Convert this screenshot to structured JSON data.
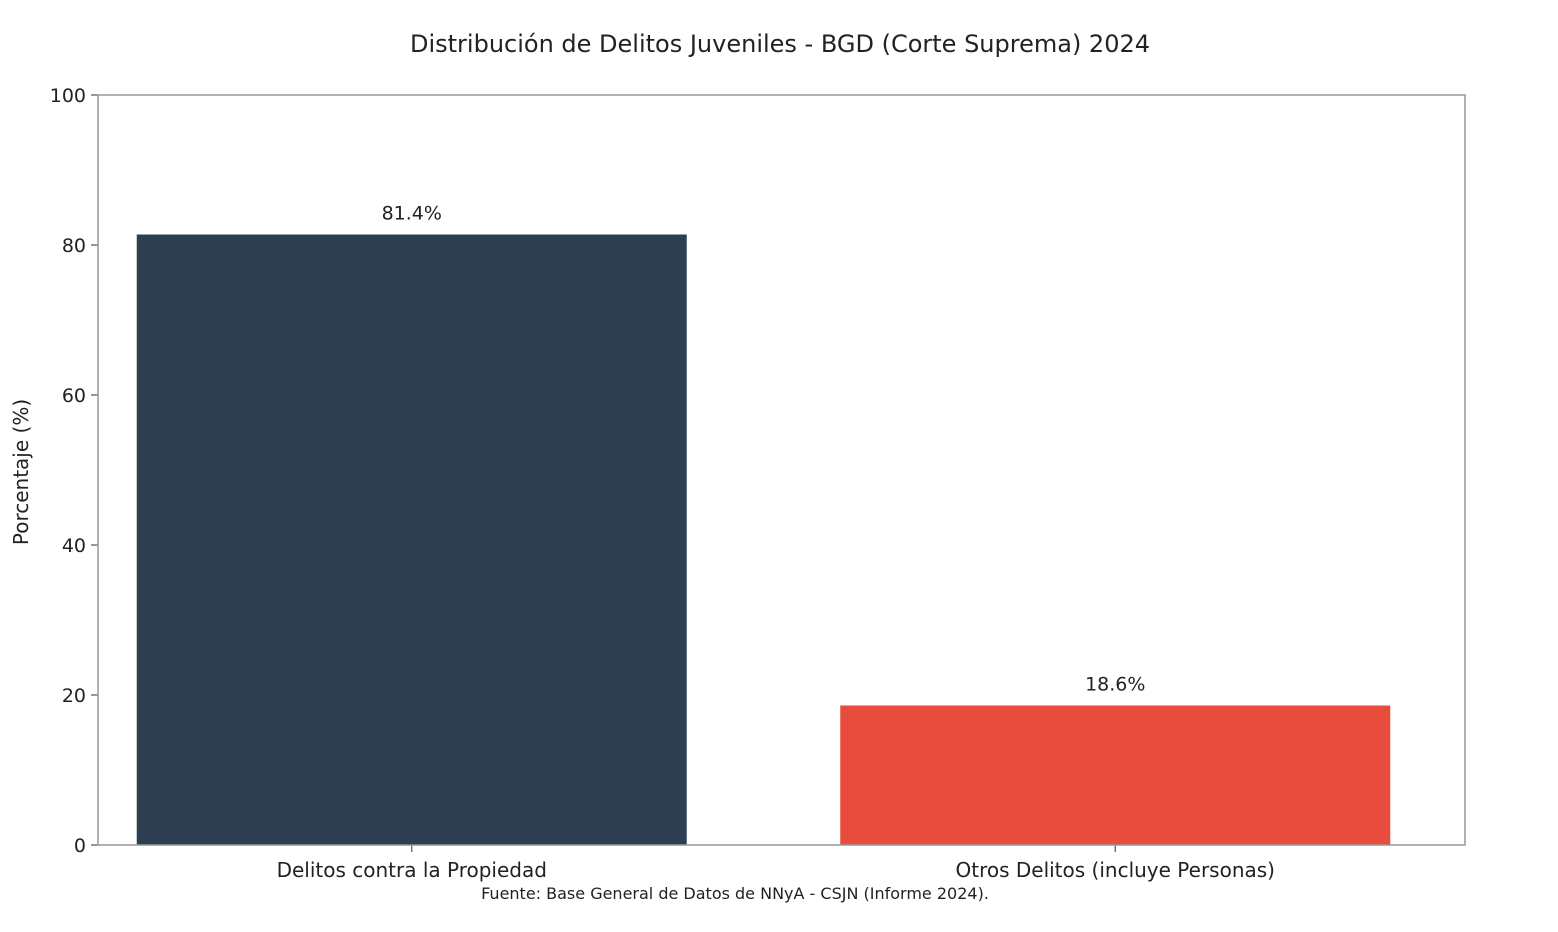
{
  "chart_data": {
    "type": "bar",
    "title": "Distribución de Delitos Juveniles - BGD (Corte Suprema) 2024",
    "xlabel": "",
    "ylabel": "Porcentaje (%)",
    "ylim": [
      0,
      100
    ],
    "yticks": [
      0,
      20,
      40,
      60,
      80,
      100
    ],
    "categories": [
      "Delitos contra la Propiedad",
      "Otros Delitos (incluye Personas)"
    ],
    "values": [
      81.4,
      18.6
    ],
    "value_labels": [
      "81.4%",
      "18.6%"
    ],
    "colors": [
      "#2d3e50",
      "#e74c3c"
    ],
    "grid": false,
    "legend": "none"
  },
  "footer": {
    "source": "Fuente: Base General de Datos de NNyA - CSJN (Informe 2024)."
  }
}
